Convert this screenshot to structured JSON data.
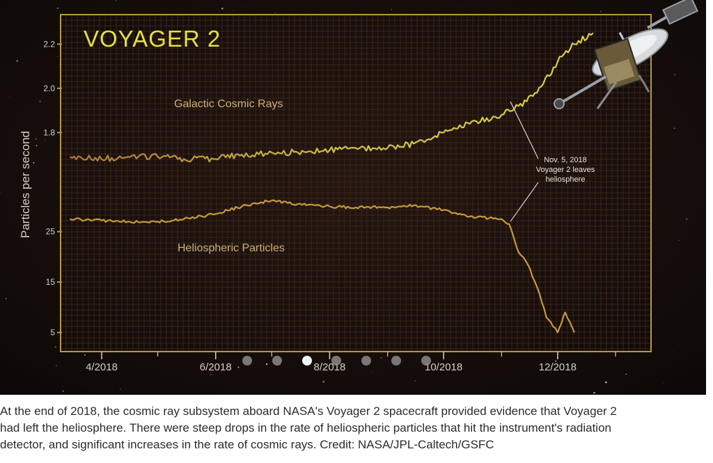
{
  "colors": {
    "background": "#150e0c",
    "plot_frame": "#b89a3a",
    "grid": "#3a2417",
    "title": "#e6e040",
    "cosmic_line": "#d8d04a",
    "cosmic_line_start": "#b07a32",
    "helio_line": "#c69a3c",
    "axis_text": "#d6d0c4",
    "label_text": "#c8b27a",
    "annotation_text": "#e8e4dc",
    "annotation_line": "#d8d4c8",
    "dot_inactive": "#8a8a8a",
    "dot_active": "#f4f4f4",
    "caption_text": "#2b2b2b"
  },
  "chart_data": {
    "type": "line",
    "title": "VOYAGER 2",
    "ylabel": "Particles per second",
    "xlabel": "",
    "x_ticks": [
      "4/2018",
      "6/2018",
      "8/2018",
      "10/2018",
      "12/2018"
    ],
    "upper_panel": {
      "yticks": [
        "1.8",
        "2.0",
        "2.2"
      ],
      "ylim": [
        1.65,
        2.28
      ],
      "series": [
        {
          "name": "Galactic Cosmic Rays",
          "x": [
            "2018-03-15",
            "2018-04-01",
            "2018-04-15",
            "2018-05-01",
            "2018-05-15",
            "2018-06-01",
            "2018-06-15",
            "2018-07-01",
            "2018-07-15",
            "2018-08-01",
            "2018-08-15",
            "2018-09-01",
            "2018-09-15",
            "2018-10-01",
            "2018-10-15",
            "2018-11-01",
            "2018-11-10",
            "2018-11-20",
            "2018-12-01",
            "2018-12-10",
            "2018-12-20"
          ],
          "y": [
            1.69,
            1.68,
            1.69,
            1.69,
            1.68,
            1.68,
            1.7,
            1.71,
            1.71,
            1.72,
            1.73,
            1.73,
            1.75,
            1.8,
            1.84,
            1.88,
            1.92,
            1.98,
            2.12,
            2.2,
            2.25
          ]
        }
      ]
    },
    "lower_panel": {
      "yticks": [
        "5",
        "15",
        "25"
      ],
      "ylim": [
        3,
        32
      ],
      "series": [
        {
          "name": "Heliospheric Particles",
          "x": [
            "2018-03-15",
            "2018-04-01",
            "2018-04-15",
            "2018-05-01",
            "2018-05-15",
            "2018-06-01",
            "2018-06-15",
            "2018-07-01",
            "2018-07-15",
            "2018-08-01",
            "2018-08-15",
            "2018-09-01",
            "2018-09-15",
            "2018-10-01",
            "2018-10-15",
            "2018-11-01",
            "2018-11-05",
            "2018-11-10",
            "2018-11-15",
            "2018-11-20",
            "2018-11-25",
            "2018-12-01",
            "2018-12-05",
            "2018-12-10"
          ],
          "y": [
            27.5,
            27.2,
            27,
            27,
            27.5,
            28.5,
            30,
            31.2,
            30.5,
            30,
            29.8,
            29.8,
            30.2,
            29.3,
            28,
            27.5,
            26.5,
            21,
            18.5,
            14,
            8,
            5,
            9,
            5
          ]
        }
      ]
    },
    "annotations": [
      {
        "text_lines": [
          "Nov. 5, 2018",
          "Voyager 2 leaves",
          "heliosphere"
        ],
        "x": "2018-11-05"
      }
    ],
    "legend": "none (series labeled inline)",
    "grid": true
  },
  "carousel": {
    "slides": [
      {
        "label": "Slide 1"
      },
      {
        "label": "Slide 2"
      },
      {
        "label": "Slide 3"
      },
      {
        "label": "Slide 4"
      },
      {
        "label": "Slide 5"
      },
      {
        "label": "Slide 6"
      },
      {
        "label": "Slide 7"
      }
    ],
    "active_index": 2
  },
  "caption": {
    "text": "At the end of 2018, the cosmic ray subsystem aboard NASA's Voyager 2 spacecraft provided evidence that Voyager 2\nhad left the heliosphere. There were steep drops in the rate of heliospheric particles that hit the instrument's radiation\ndetector, and significant increases in the rate of cosmic rays. Credit: NASA/JPL-Caltech/GSFC"
  }
}
